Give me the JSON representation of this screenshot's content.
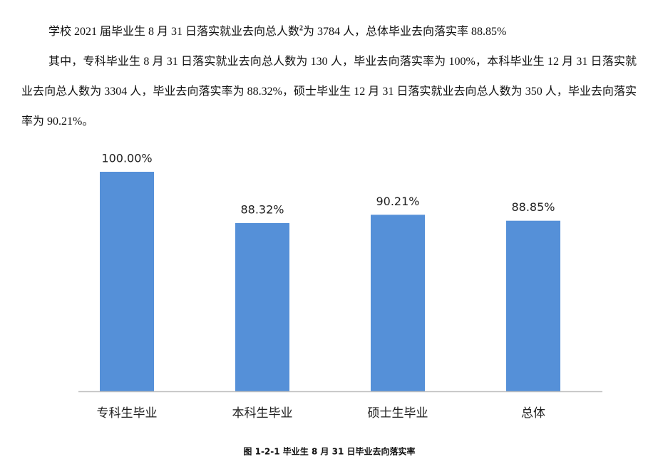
{
  "paragraphs": [
    {
      "text": "学校 2021 届毕业生 8 月 31 日落实就业去向总人数",
      "footnote": "2",
      "text_after": "为 3784 人，总体毕业去向落实率 88.85%"
    },
    {
      "text": "其中，专科毕业生 8 月 31 日落实就业去向总人数为 130 人，毕业去向落实率为 100%，本科毕业生 12 月 31 日落实就业去向总人数为 3304 人，毕业去向落实率为 88.32%，硕士毕业生 12 月 31 日落实就业去向总人数为 350 人，毕业去向落实率为 90.21%。"
    }
  ],
  "chart_data": {
    "type": "bar",
    "title": "图 1-2-1    毕业生 8 月 31 日毕业去向落实率",
    "categories": [
      "专科生毕业",
      "本科生毕业",
      "硕士生毕业",
      "总体"
    ],
    "values": [
      100,
      88.32,
      90.21,
      88.85
    ],
    "value_labels": [
      "100.00%",
      "88.32%",
      "90.21%",
      "88.85%"
    ],
    "color": "#5590d8",
    "ylim": [
      50,
      100
    ]
  }
}
